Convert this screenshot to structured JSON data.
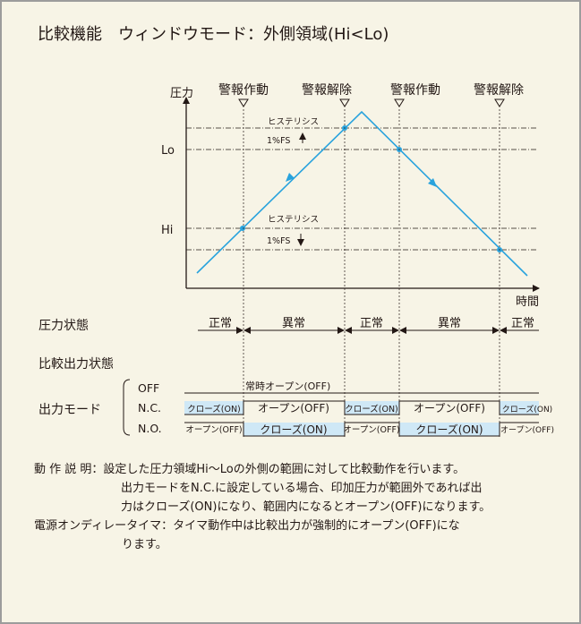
{
  "title": "比較機能　ウィンドウモード：外側領域(Hi<Lo)",
  "graph": {
    "y_axis_label": "圧力",
    "x_axis_label": "時間",
    "level_lo": "Lo",
    "level_hi": "Hi",
    "hysteresis_label": "ヒステリシス",
    "fs_label": "1%FS",
    "events": [
      "警報作動",
      "警報解除",
      "警報作動",
      "警報解除"
    ]
  },
  "pressure_state": {
    "label": "圧力状態",
    "segments": [
      "正常",
      "異常",
      "正常",
      "異常",
      "正常"
    ]
  },
  "compare_output": {
    "label": "比較出力状態",
    "output_mode_label": "出力モード",
    "off_row": {
      "label": "OFF",
      "text": "常時オープン(OFF)"
    },
    "nc_row": {
      "label": "N.C.",
      "segments": [
        "クローズ(ON)",
        "オープン(OFF)",
        "クローズ(ON)",
        "オープン(OFF)",
        "クローズ(ON)"
      ]
    },
    "no_row": {
      "label": "N.O.",
      "segments": [
        "オープン(OFF)",
        "クローズ(ON)",
        "オープン(OFF)",
        "クローズ(ON)",
        "オープン(OFF)"
      ]
    }
  },
  "description": {
    "op_label": "動 作 説 明：",
    "op_lines": [
      "設定した圧力領域Hi～Loの外側の範囲に対して比較動作を行います。",
      "出力モードをN.C.に設定している場合、印加圧力が範囲外であれば出",
      "力はクローズ(ON)になり、範囲内になるとオープン(OFF)になります。"
    ],
    "delay_label": "電源オンディレータイマ：",
    "delay_lines": [
      "タイマ動作中は比較出力が強制的にオープン(OFF)にな",
      "ります。"
    ]
  },
  "colors": {
    "panel_bg": "#f7f4e6",
    "panel_border": "#9c9c9c",
    "signal_blue": "#29a3dd",
    "band_fill": "#cfe8f6",
    "text": "#231815"
  }
}
